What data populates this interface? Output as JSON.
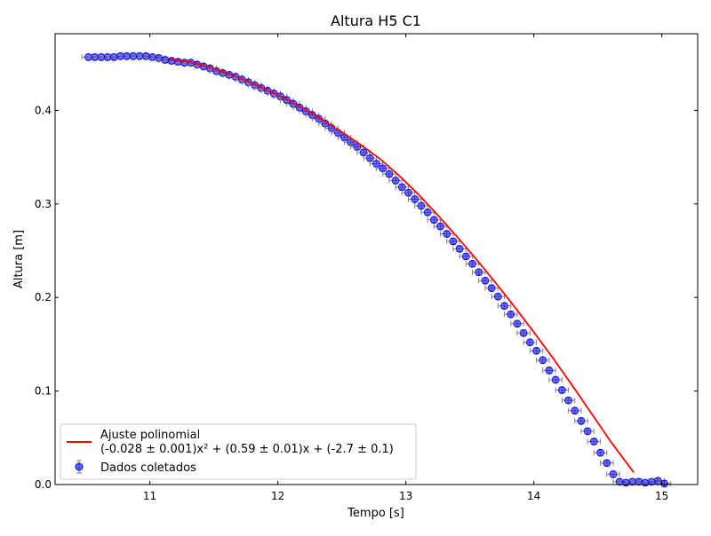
{
  "chart_data": {
    "type": "scatter",
    "title": "Altura H5 C1",
    "xlabel": "Tempo [s]",
    "ylabel": "Altura [m]",
    "xlim": [
      10.26,
      15.28
    ],
    "ylim": [
      0.0,
      0.482
    ],
    "xticks": [
      11,
      12,
      13,
      14,
      15
    ],
    "yticks": [
      0.0,
      0.1,
      0.2,
      0.3,
      0.4
    ],
    "xtick_labels": [
      "11",
      "12",
      "13",
      "14",
      "15"
    ],
    "ytick_labels": [
      "0.0",
      "0.1",
      "0.2",
      "0.3",
      "0.4"
    ],
    "grid": false,
    "legend_position": "bottom-left",
    "colors": {
      "fit": "#ff0000",
      "data": "#0000ff",
      "errorbar": "#808080"
    },
    "series": [
      {
        "name": "Dados coletados",
        "type": "scatter",
        "x": [
          10.52,
          10.57,
          10.62,
          10.67,
          10.72,
          10.77,
          10.82,
          10.87,
          10.92,
          10.97,
          11.02,
          11.07,
          11.12,
          11.17,
          11.22,
          11.27,
          11.32,
          11.37,
          11.42,
          11.47,
          11.52,
          11.57,
          11.62,
          11.67,
          11.72,
          11.77,
          11.82,
          11.87,
          11.92,
          11.97,
          12.02,
          12.07,
          12.12,
          12.17,
          12.22,
          12.27,
          12.32,
          12.37,
          12.42,
          12.47,
          12.52,
          12.57,
          12.62,
          12.67,
          12.72,
          12.77,
          12.82,
          12.87,
          12.92,
          12.97,
          13.02,
          13.07,
          13.12,
          13.17,
          13.22,
          13.27,
          13.32,
          13.37,
          13.42,
          13.47,
          13.52,
          13.57,
          13.62,
          13.67,
          13.72,
          13.77,
          13.82,
          13.87,
          13.92,
          13.97,
          14.02,
          14.07,
          14.12,
          14.17,
          14.22,
          14.27,
          14.32,
          14.37,
          14.42,
          14.47,
          14.52,
          14.57,
          14.62,
          14.67,
          14.72,
          14.77,
          14.82,
          14.87,
          14.92,
          14.97,
          15.02
        ],
        "y": [
          0.457,
          0.457,
          0.457,
          0.457,
          0.457,
          0.458,
          0.458,
          0.458,
          0.458,
          0.458,
          0.457,
          0.456,
          0.454,
          0.453,
          0.452,
          0.451,
          0.451,
          0.449,
          0.447,
          0.445,
          0.442,
          0.44,
          0.438,
          0.436,
          0.433,
          0.43,
          0.427,
          0.424,
          0.421,
          0.418,
          0.415,
          0.411,
          0.407,
          0.403,
          0.399,
          0.395,
          0.391,
          0.386,
          0.381,
          0.376,
          0.371,
          0.366,
          0.361,
          0.355,
          0.349,
          0.343,
          0.338,
          0.332,
          0.325,
          0.318,
          0.312,
          0.305,
          0.298,
          0.291,
          0.283,
          0.276,
          0.268,
          0.26,
          0.252,
          0.244,
          0.236,
          0.227,
          0.218,
          0.21,
          0.201,
          0.191,
          0.182,
          0.172,
          0.162,
          0.152,
          0.143,
          0.133,
          0.122,
          0.112,
          0.101,
          0.09,
          0.079,
          0.068,
          0.057,
          0.046,
          0.034,
          0.023,
          0.011,
          0.003,
          0.002,
          0.003,
          0.003,
          0.002,
          0.003,
          0.004,
          0.001
        ],
        "x_error": 0.05,
        "y_error": 0.003
      },
      {
        "name": "Ajuste polinomial\n(-0.028 ± 0.001)x² + (0.59 ± 0.01)x + (-2.7 ± 0.1)",
        "type": "line",
        "x": [
          11.15,
          11.3,
          11.45,
          11.6,
          11.75,
          11.9,
          12.05,
          12.2,
          12.35,
          12.5,
          12.65,
          12.8,
          12.95,
          13.1,
          13.25,
          13.4,
          13.55,
          13.7,
          13.85,
          14.0,
          14.15,
          14.3,
          14.45,
          14.6,
          14.78
        ],
        "y": [
          0.455,
          0.452,
          0.447,
          0.44,
          0.432,
          0.423,
          0.413,
          0.402,
          0.39,
          0.377,
          0.363,
          0.348,
          0.33,
          0.31,
          0.288,
          0.265,
          0.241,
          0.216,
          0.19,
          0.163,
          0.135,
          0.106,
          0.076,
          0.046,
          0.013
        ]
      }
    ]
  }
}
